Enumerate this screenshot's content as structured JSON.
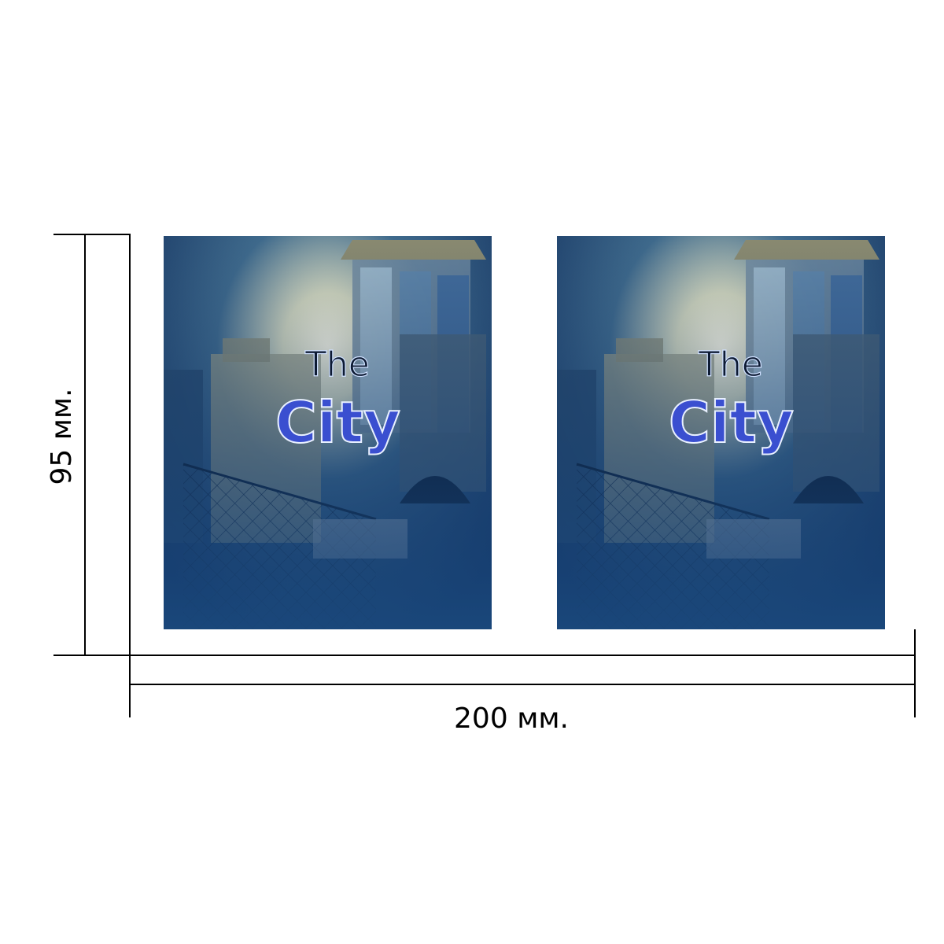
{
  "dimensions": {
    "height": "95 мм.",
    "width": "200 мм."
  },
  "images": [
    {
      "title_top": "The",
      "title_bottom": "City"
    },
    {
      "title_top": "The",
      "title_bottom": "City"
    }
  ]
}
